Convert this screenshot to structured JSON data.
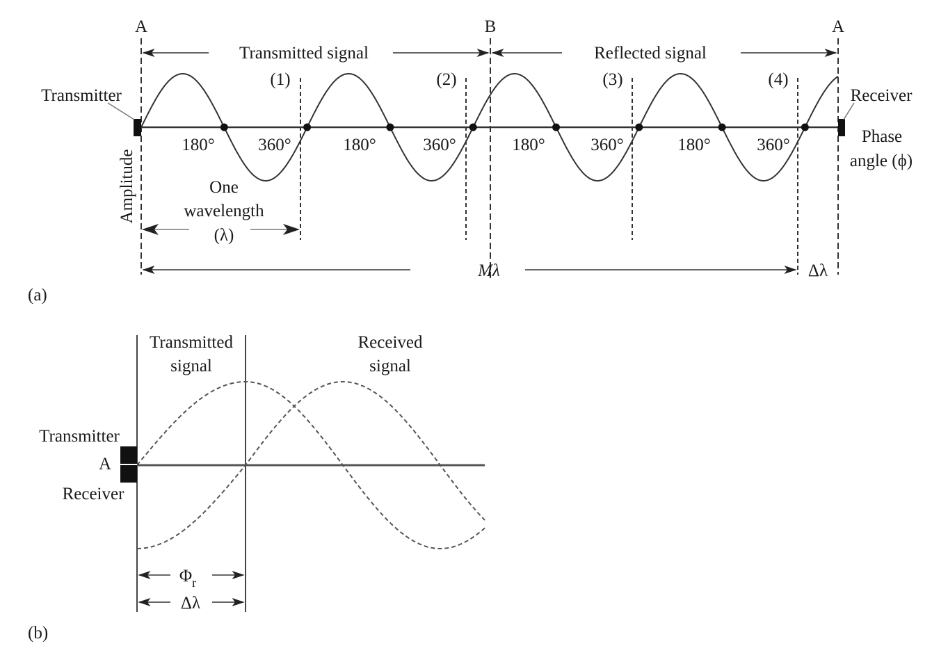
{
  "panel_a": {
    "panel_label": "(a)",
    "point_a_left": "A",
    "point_b": "B",
    "point_a_right": "A",
    "transmitted_signal": "Transmitted signal",
    "reflected_signal": "Reflected signal",
    "markers": [
      "(1)",
      "(2)",
      "(3)",
      "(4)"
    ],
    "transmitter": "Transmitter",
    "receiver": "Receiver",
    "phase_angle_line1": "Phase",
    "phase_angle_line2": "angle (ϕ)",
    "amplitude": "Amplitude",
    "degree_labels": [
      "180°",
      "360°",
      "180°",
      "360°",
      "180°",
      "360°",
      "180°",
      "360°"
    ],
    "wavelength_line1": "One",
    "wavelength_line2": "wavelength",
    "wavelength_line3": "(λ)",
    "m_lambda": "Mλ",
    "delta_lambda": "Δλ"
  },
  "panel_b": {
    "panel_label": "(b)",
    "transmitted_line1": "Transmitted",
    "transmitted_line2": "signal",
    "received_line1": "Received",
    "received_line2": "signal",
    "transmitter": "Transmitter",
    "point_a": "A",
    "receiver": "Receiver",
    "phi_r": "Φ",
    "phi_r_sub": "r",
    "delta_lambda": "Δλ"
  }
}
